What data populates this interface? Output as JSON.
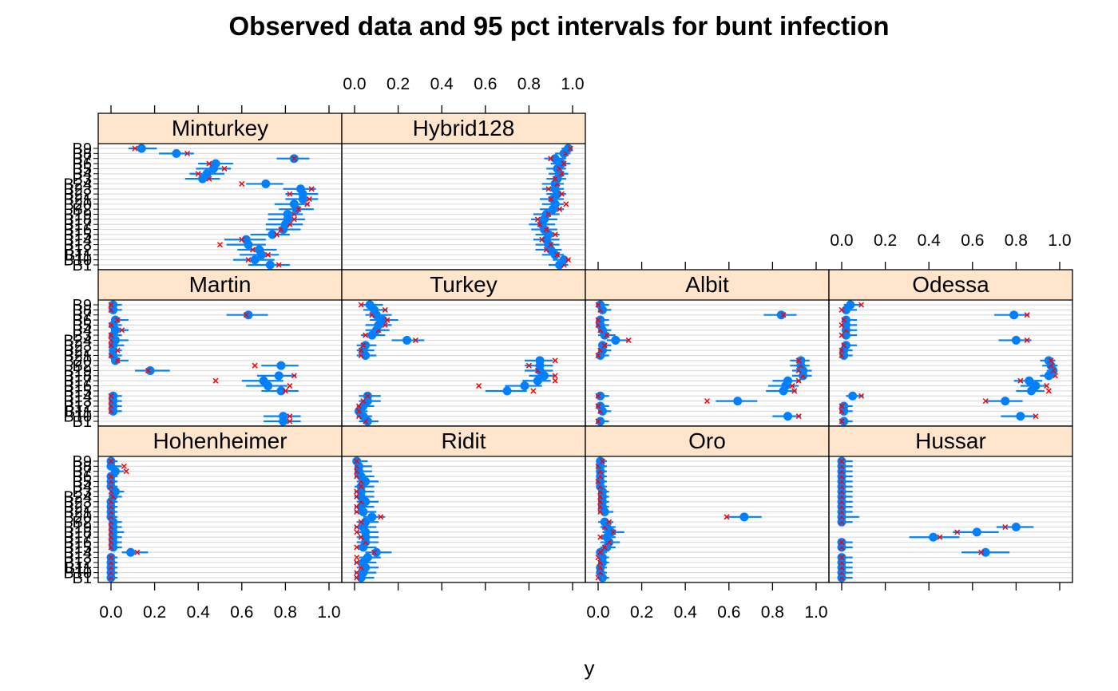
{
  "chart_data": {
    "type": "dotplot",
    "title": "Observed data and 95 pct intervals for bunt infection",
    "xlabel": "y",
    "xlim": [
      0,
      1
    ],
    "x_ticks": [
      "0.0",
      "0.2",
      "0.4",
      "0.6",
      "0.8",
      "1.0"
    ],
    "legend": "none",
    "grid": true,
    "colors": {
      "interval": "#0080ff",
      "point": "#0080ff",
      "observed": "#ff0000",
      "strip_bg": "#ffe5cc",
      "grid": "#dddddd"
    },
    "categories": [
      "B1",
      "B10",
      "B11",
      "B12",
      "B13",
      "B14",
      "B15",
      "B16",
      "B17",
      "B18",
      "B19",
      "B2",
      "B20",
      "B21",
      "B22",
      "B23",
      "B24",
      "B3",
      "B4",
      "B5",
      "B6",
      "B7",
      "B8",
      "B9"
    ],
    "panels": [
      {
        "name": "Minturkey",
        "points": [
          0.73,
          0.66,
          0.69,
          0.68,
          0.63,
          0.62,
          0.74,
          0.79,
          0.8,
          0.81,
          0.81,
          0.85,
          0.84,
          0.88,
          0.88,
          0.87,
          0.71,
          0.42,
          0.44,
          0.47,
          0.48,
          0.84,
          0.3,
          0.14
        ],
        "lower": [
          0.63,
          0.56,
          0.59,
          0.58,
          0.53,
          0.52,
          0.64,
          0.71,
          0.71,
          0.72,
          0.72,
          0.77,
          0.75,
          0.8,
          0.8,
          0.79,
          0.62,
          0.34,
          0.36,
          0.39,
          0.4,
          0.76,
          0.22,
          0.08
        ],
        "upper": [
          0.82,
          0.75,
          0.77,
          0.76,
          0.71,
          0.71,
          0.82,
          0.87,
          0.88,
          0.89,
          0.88,
          0.93,
          0.91,
          0.95,
          0.95,
          0.94,
          0.79,
          0.5,
          0.52,
          0.55,
          0.56,
          0.91,
          0.38,
          0.21
        ],
        "observed": [
          0.77,
          0.63,
          0.72,
          0.65,
          0.5,
          0.6,
          0.76,
          0.78,
          0.82,
          0.84,
          0.84,
          0.86,
          0.9,
          0.91,
          0.82,
          0.92,
          0.6,
          0.45,
          0.4,
          0.52,
          0.45,
          0.84,
          0.35,
          0.11
        ]
      },
      {
        "name": "Hybrid128",
        "points": [
          0.94,
          0.96,
          0.92,
          0.9,
          0.89,
          0.88,
          0.89,
          0.87,
          0.86,
          0.87,
          0.88,
          0.91,
          0.92,
          0.91,
          0.93,
          0.92,
          0.92,
          0.93,
          0.94,
          0.93,
          0.95,
          0.92,
          0.96,
          0.98
        ],
        "lower": [
          0.89,
          0.91,
          0.86,
          0.83,
          0.83,
          0.82,
          0.83,
          0.81,
          0.8,
          0.81,
          0.82,
          0.85,
          0.86,
          0.85,
          0.88,
          0.86,
          0.86,
          0.88,
          0.89,
          0.88,
          0.9,
          0.87,
          0.92,
          0.95
        ],
        "upper": [
          0.98,
          0.99,
          0.96,
          0.95,
          0.94,
          0.94,
          0.94,
          0.93,
          0.92,
          0.93,
          0.94,
          0.96,
          0.96,
          0.96,
          0.97,
          0.96,
          0.96,
          0.97,
          0.98,
          0.97,
          0.99,
          0.97,
          0.99,
          1.0
        ],
        "observed": [
          0.96,
          0.98,
          0.93,
          0.88,
          0.9,
          0.86,
          0.92,
          0.88,
          0.85,
          0.84,
          0.89,
          0.94,
          0.97,
          0.9,
          0.95,
          0.89,
          0.93,
          0.92,
          0.95,
          0.94,
          0.96,
          0.9,
          0.97,
          0.99
        ]
      },
      {
        "name": "Martin",
        "points": [
          0.79,
          0.79,
          0.01,
          0.01,
          0.01,
          0.01,
          0.78,
          0.72,
          0.7,
          0.77,
          0.18,
          0.78,
          0.02,
          0.01,
          0.01,
          0.01,
          0.02,
          0.01,
          0.02,
          0.01,
          0.02,
          0.63,
          0.01,
          0.01
        ],
        "lower": [
          0.7,
          0.7,
          0.0,
          0.0,
          0.0,
          0.0,
          0.69,
          0.62,
          0.6,
          0.67,
          0.11,
          0.69,
          0.0,
          0.0,
          0.0,
          0.0,
          0.0,
          0.0,
          0.0,
          0.0,
          0.0,
          0.53,
          0.0,
          0.0
        ],
        "upper": [
          0.87,
          0.87,
          0.05,
          0.05,
          0.05,
          0.05,
          0.86,
          0.81,
          0.79,
          0.85,
          0.27,
          0.86,
          0.08,
          0.05,
          0.05,
          0.06,
          0.08,
          0.05,
          0.08,
          0.05,
          0.08,
          0.72,
          0.05,
          0.05
        ],
        "observed": [
          0.82,
          0.82,
          0.0,
          0.0,
          0.0,
          0.0,
          0.8,
          0.82,
          0.48,
          0.84,
          0.17,
          0.66,
          0.03,
          0.0,
          0.03,
          0.0,
          0.0,
          0.0,
          0.05,
          0.0,
          0.03,
          0.62,
          0.0,
          0.0
        ]
      },
      {
        "name": "Turkey",
        "points": [
          0.06,
          0.04,
          0.02,
          0.04,
          0.06,
          0.06,
          0.7,
          0.78,
          0.84,
          0.87,
          0.85,
          0.85,
          0.85,
          0.05,
          0.04,
          0.05,
          0.24,
          0.08,
          0.1,
          0.11,
          0.13,
          0.1,
          0.09,
          0.07
        ],
        "lower": [
          0.02,
          0.01,
          0.0,
          0.01,
          0.02,
          0.02,
          0.6,
          0.69,
          0.77,
          0.8,
          0.78,
          0.78,
          0.78,
          0.01,
          0.01,
          0.01,
          0.17,
          0.03,
          0.05,
          0.05,
          0.07,
          0.05,
          0.04,
          0.03
        ],
        "upper": [
          0.11,
          0.08,
          0.06,
          0.09,
          0.12,
          0.12,
          0.79,
          0.86,
          0.9,
          0.92,
          0.91,
          0.91,
          0.91,
          0.1,
          0.09,
          0.1,
          0.32,
          0.14,
          0.16,
          0.17,
          0.2,
          0.17,
          0.15,
          0.13
        ],
        "observed": [
          0.05,
          0.02,
          0.02,
          0.02,
          0.04,
          0.06,
          0.82,
          0.57,
          0.92,
          0.92,
          0.84,
          0.8,
          0.92,
          0.03,
          0.03,
          0.04,
          0.28,
          0.05,
          0.11,
          0.14,
          0.15,
          0.08,
          0.14,
          0.03
        ]
      },
      {
        "name": "Albit",
        "points": [
          0.01,
          0.87,
          0.02,
          0.01,
          0.64,
          0.01,
          0.85,
          0.86,
          0.87,
          0.94,
          0.94,
          0.93,
          0.93,
          0.01,
          0.02,
          0.02,
          0.08,
          0.03,
          0.02,
          0.01,
          0.01,
          0.84,
          0.02,
          0.01
        ],
        "lower": [
          0.0,
          0.8,
          0.0,
          0.0,
          0.54,
          0.0,
          0.77,
          0.78,
          0.8,
          0.89,
          0.89,
          0.88,
          0.88,
          0.0,
          0.0,
          0.0,
          0.04,
          0.0,
          0.0,
          0.0,
          0.0,
          0.76,
          0.0,
          0.0
        ],
        "upper": [
          0.05,
          0.93,
          0.06,
          0.05,
          0.73,
          0.05,
          0.91,
          0.92,
          0.93,
          0.98,
          0.98,
          0.97,
          0.97,
          0.05,
          0.06,
          0.06,
          0.14,
          0.08,
          0.06,
          0.05,
          0.05,
          0.91,
          0.06,
          0.05
        ],
        "observed": [
          0.0,
          0.92,
          0.01,
          0.0,
          0.5,
          0.0,
          0.9,
          0.89,
          0.92,
          0.94,
          0.92,
          0.93,
          0.92,
          0.0,
          0.01,
          0.03,
          0.14,
          0.04,
          0.01,
          0.0,
          0.0,
          0.85,
          0.01,
          0.0
        ]
      },
      {
        "name": "Odessa",
        "points": [
          0.01,
          0.82,
          0.01,
          0.01,
          0.75,
          0.05,
          0.87,
          0.89,
          0.86,
          0.95,
          0.97,
          0.96,
          0.95,
          0.01,
          0.01,
          0.02,
          0.8,
          0.02,
          0.02,
          0.02,
          0.02,
          0.79,
          0.02,
          0.04
        ],
        "lower": [
          0.0,
          0.73,
          0.0,
          0.0,
          0.66,
          0.02,
          0.8,
          0.82,
          0.79,
          0.91,
          0.94,
          0.92,
          0.91,
          0.0,
          0.0,
          0.0,
          0.72,
          0.0,
          0.0,
          0.0,
          0.0,
          0.7,
          0.0,
          0.01
        ],
        "upper": [
          0.05,
          0.89,
          0.05,
          0.05,
          0.83,
          0.1,
          0.93,
          0.94,
          0.92,
          0.98,
          0.99,
          0.99,
          0.98,
          0.05,
          0.05,
          0.07,
          0.87,
          0.07,
          0.07,
          0.07,
          0.07,
          0.86,
          0.07,
          0.09
        ],
        "observed": [
          0.0,
          0.89,
          0.0,
          0.0,
          0.66,
          0.09,
          0.95,
          0.94,
          0.82,
          0.98,
          0.97,
          0.96,
          0.96,
          0.0,
          0.0,
          0.01,
          0.85,
          0.0,
          0.02,
          0.0,
          0.01,
          0.85,
          0.0,
          0.09
        ]
      },
      {
        "name": "Hohenheimer",
        "points": [
          0.0,
          0.0,
          0.0,
          0.0,
          0.0,
          0.09,
          0.01,
          0.01,
          0.01,
          0.01,
          0.01,
          0.01,
          0.0,
          0.0,
          0.0,
          0.0,
          0.01,
          0.02,
          0.0,
          0.0,
          0.0,
          0.02,
          0.0,
          0.0
        ],
        "lower": [
          0.0,
          0.0,
          0.0,
          0.0,
          0.0,
          0.05,
          0.0,
          0.0,
          0.0,
          0.0,
          0.0,
          0.0,
          0.0,
          0.0,
          0.0,
          0.0,
          0.0,
          0.0,
          0.0,
          0.0,
          0.0,
          0.0,
          0.0,
          0.0
        ],
        "upper": [
          0.03,
          0.03,
          0.03,
          0.03,
          0.03,
          0.17,
          0.05,
          0.05,
          0.05,
          0.06,
          0.05,
          0.05,
          0.03,
          0.03,
          0.03,
          0.03,
          0.05,
          0.06,
          0.03,
          0.03,
          0.03,
          0.06,
          0.05,
          0.03
        ],
        "observed": [
          0.0,
          0.0,
          0.0,
          0.0,
          0.0,
          0.12,
          0.0,
          0.0,
          0.0,
          0.0,
          0.0,
          0.0,
          0.0,
          0.0,
          0.0,
          0.0,
          0.01,
          0.0,
          0.0,
          0.0,
          0.0,
          0.07,
          0.06,
          0.0
        ]
      },
      {
        "name": "Ridit",
        "points": [
          0.03,
          0.04,
          0.05,
          0.04,
          0.06,
          0.1,
          0.04,
          0.05,
          0.05,
          0.05,
          0.04,
          0.05,
          0.08,
          0.04,
          0.03,
          0.05,
          0.03,
          0.03,
          0.03,
          0.05,
          0.03,
          0.02,
          0.02,
          0.01
        ],
        "lower": [
          0.0,
          0.0,
          0.01,
          0.0,
          0.02,
          0.05,
          0.01,
          0.01,
          0.01,
          0.01,
          0.0,
          0.01,
          0.04,
          0.0,
          0.0,
          0.01,
          0.0,
          0.0,
          0.0,
          0.01,
          0.0,
          0.0,
          0.0,
          0.0
        ],
        "upper": [
          0.09,
          0.1,
          0.11,
          0.1,
          0.12,
          0.17,
          0.1,
          0.11,
          0.11,
          0.11,
          0.1,
          0.11,
          0.14,
          0.1,
          0.09,
          0.11,
          0.09,
          0.09,
          0.09,
          0.11,
          0.09,
          0.08,
          0.08,
          0.06
        ],
        "observed": [
          0.01,
          0.01,
          0.03,
          0.01,
          0.01,
          0.09,
          0.01,
          0.05,
          0.03,
          0.01,
          0.01,
          0.03,
          0.12,
          0.01,
          0.01,
          0.03,
          0.01,
          0.01,
          0.03,
          0.03,
          0.01,
          0.01,
          0.01,
          0.01
        ]
      },
      {
        "name": "Oro",
        "points": [
          0.02,
          0.01,
          0.01,
          0.02,
          0.02,
          0.01,
          0.04,
          0.05,
          0.04,
          0.06,
          0.04,
          0.03,
          0.67,
          0.03,
          0.02,
          0.02,
          0.02,
          0.02,
          0.01,
          0.01,
          0.01,
          0.01,
          0.01,
          0.01
        ],
        "lower": [
          0.0,
          0.0,
          0.0,
          0.0,
          0.0,
          0.0,
          0.01,
          0.01,
          0.01,
          0.02,
          0.01,
          0.0,
          0.59,
          0.0,
          0.0,
          0.0,
          0.0,
          0.0,
          0.0,
          0.0,
          0.0,
          0.0,
          0.0,
          0.0
        ],
        "upper": [
          0.05,
          0.04,
          0.04,
          0.05,
          0.05,
          0.04,
          0.08,
          0.1,
          0.08,
          0.12,
          0.08,
          0.07,
          0.75,
          0.07,
          0.05,
          0.05,
          0.05,
          0.05,
          0.04,
          0.04,
          0.04,
          0.04,
          0.04,
          0.04
        ],
        "observed": [
          0.0,
          0.01,
          0.01,
          0.01,
          0.0,
          0.01,
          0.03,
          0.05,
          0.01,
          0.07,
          0.03,
          0.05,
          0.59,
          0.01,
          0.01,
          0.01,
          0.01,
          0.01,
          0.01,
          0.0,
          0.01,
          0.01,
          0.0,
          0.02
        ]
      },
      {
        "name": "Hussar",
        "points": [
          0.0,
          0.0,
          0.0,
          0.0,
          0.0,
          0.66,
          0.0,
          0.0,
          0.42,
          0.62,
          0.8,
          0.0,
          0.0,
          0.0,
          0.0,
          0.0,
          0.0,
          0.0,
          0.0,
          0.0,
          0.0,
          0.0,
          0.0,
          0.0
        ],
        "lower": [
          0.0,
          0.0,
          0.0,
          0.0,
          0.0,
          0.55,
          0.0,
          0.0,
          0.31,
          0.51,
          0.71,
          0.0,
          0.0,
          0.0,
          0.0,
          0.0,
          0.0,
          0.0,
          0.0,
          0.0,
          0.0,
          0.0,
          0.0,
          0.0
        ],
        "upper": [
          0.05,
          0.05,
          0.05,
          0.05,
          0.05,
          0.77,
          0.05,
          0.05,
          0.54,
          0.72,
          0.88,
          0.05,
          0.08,
          0.05,
          0.05,
          0.05,
          0.05,
          0.05,
          0.05,
          0.05,
          0.05,
          0.05,
          0.05,
          0.05
        ],
        "observed": [
          0.0,
          0.0,
          0.0,
          0.0,
          0.0,
          0.64,
          0.0,
          0.0,
          0.45,
          0.53,
          0.75,
          0.0,
          0.0,
          0.0,
          0.0,
          0.0,
          0.0,
          0.0,
          0.0,
          0.0,
          0.0,
          0.0,
          0.0,
          0.0
        ]
      }
    ]
  }
}
